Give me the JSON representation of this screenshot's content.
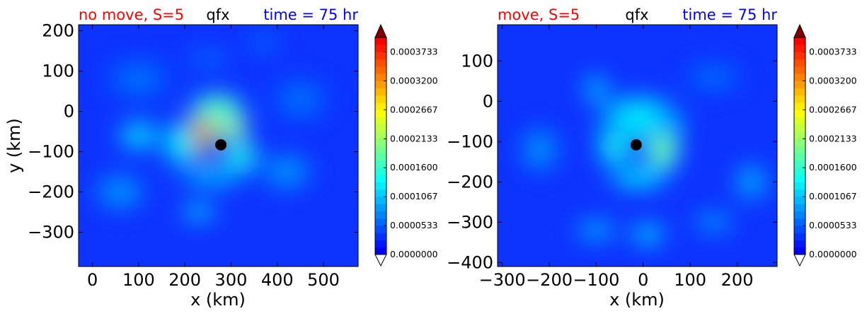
{
  "chart_data": [
    {
      "type": "heatmap",
      "title_left": "no move, S=5",
      "title_center": "qfx",
      "title_right": "time = 75 hr",
      "title_left_color": "#ff0000",
      "title_center_color": "#000000",
      "title_right_color": "#0000ff",
      "xlabel": "x (km)",
      "ylabel": "y (km)",
      "xlim": [
        -30,
        575
      ],
      "ylim": [
        -385,
        215
      ],
      "xticks": [
        0,
        100,
        200,
        300,
        400,
        500
      ],
      "yticks": [
        -300,
        -200,
        -100,
        0,
        100,
        200
      ],
      "center_marker": {
        "x": 278,
        "y": -83,
        "color": "#000000"
      },
      "field_features": [
        {
          "x": 230,
          "y": -60,
          "sx": 38,
          "sy": 55,
          "value": 0.00035,
          "rot": 25
        },
        {
          "x": 300,
          "y": -40,
          "sx": 40,
          "sy": 30,
          "value": 0.00022,
          "rot": 0
        },
        {
          "x": 270,
          "y": 10,
          "sx": 60,
          "sy": 35,
          "value": 0.00017,
          "rot": 0
        },
        {
          "x": 190,
          "y": -80,
          "sx": 40,
          "sy": 60,
          "value": 0.00012,
          "rot": 0
        },
        {
          "x": 320,
          "y": -110,
          "sx": 40,
          "sy": 40,
          "value": 0.00014,
          "rot": 0
        },
        {
          "x": 100,
          "y": -60,
          "sx": 45,
          "sy": 35,
          "value": 0.00012,
          "rot": 0
        },
        {
          "x": 260,
          "y": -160,
          "sx": 80,
          "sy": 30,
          "value": 9e-05,
          "rot": 0
        },
        {
          "x": 230,
          "y": -250,
          "sx": 40,
          "sy": 25,
          "value": 0.0001,
          "rot": 0
        },
        {
          "x": 60,
          "y": -200,
          "sx": 60,
          "sy": 50,
          "value": 7e-05,
          "rot": 0
        },
        {
          "x": 420,
          "y": -150,
          "sx": 60,
          "sy": 50,
          "value": 7e-05,
          "rot": 0
        },
        {
          "x": 250,
          "y": 130,
          "sx": 50,
          "sy": 20,
          "value": 6e-05,
          "rot": 0
        },
        {
          "x": 370,
          "y": 170,
          "sx": 40,
          "sy": 30,
          "value": 5e-05,
          "rot": 0
        },
        {
          "x": 100,
          "y": 80,
          "sx": 80,
          "sy": 60,
          "value": 5e-05,
          "rot": 0
        },
        {
          "x": 450,
          "y": 30,
          "sx": 70,
          "sy": 60,
          "value": 5e-05,
          "rot": 0
        }
      ],
      "colorbar": {
        "vmin": 0.0,
        "vmax": 0.0004,
        "tick_values": [
          0.0,
          5.33e-05,
          0.0001067,
          0.00016,
          0.0002133,
          0.0002667,
          0.00032,
          0.0003733
        ],
        "tick_labels": [
          "0.0000000",
          "0.0000533",
          "0.0001067",
          "0.0001600",
          "0.0002133",
          "0.0002667",
          "0.0003200",
          "0.0003733"
        ],
        "extend": "both",
        "levels": 30
      }
    },
    {
      "type": "heatmap",
      "title_left": "move, S=5",
      "title_center": "qfx",
      "title_right": "time = 75 hr",
      "title_left_color": "#ff0000",
      "title_center_color": "#000000",
      "title_right_color": "#0000ff",
      "xlabel": "x (km)",
      "ylabel": "",
      "xlim": [
        -310,
        285
      ],
      "ylim": [
        -410,
        190
      ],
      "xticks": [
        -300,
        -200,
        -100,
        0,
        100,
        200
      ],
      "yticks": [
        -400,
        -300,
        -200,
        -100,
        0,
        100
      ],
      "center_marker": {
        "x": -15,
        "y": -108,
        "color": "#000000"
      },
      "field_features": [
        {
          "x": 10,
          "y": -60,
          "sx": 80,
          "sy": 40,
          "value": 0.00017,
          "rot": 0
        },
        {
          "x": 40,
          "y": -120,
          "sx": 40,
          "sy": 55,
          "value": 0.00018,
          "rot": 0
        },
        {
          "x": -60,
          "y": -110,
          "sx": 40,
          "sy": 55,
          "value": 0.00013,
          "rot": 0
        },
        {
          "x": -10,
          "y": -190,
          "sx": 70,
          "sy": 30,
          "value": 0.00011,
          "rot": 0
        },
        {
          "x": -10,
          "y": -40,
          "sx": 90,
          "sy": 60,
          "value": 0.00011,
          "rot": 0
        },
        {
          "x": -100,
          "y": 30,
          "sx": 30,
          "sy": 40,
          "value": 9e-05,
          "rot": 0
        },
        {
          "x": -220,
          "y": -120,
          "sx": 45,
          "sy": 60,
          "value": 7e-05,
          "rot": 0
        },
        {
          "x": -100,
          "y": -320,
          "sx": 50,
          "sy": 30,
          "value": 8e-05,
          "rot": 0
        },
        {
          "x": 10,
          "y": -330,
          "sx": 40,
          "sy": 30,
          "value": 0.0001,
          "rot": 0
        },
        {
          "x": 150,
          "y": -300,
          "sx": 50,
          "sy": 30,
          "value": 7e-05,
          "rot": 0
        },
        {
          "x": 230,
          "y": -200,
          "sx": 40,
          "sy": 50,
          "value": 8e-05,
          "rot": 0
        },
        {
          "x": 150,
          "y": 60,
          "sx": 70,
          "sy": 40,
          "value": 5e-05,
          "rot": 0
        }
      ],
      "colorbar": {
        "vmin": 0.0,
        "vmax": 0.0004,
        "tick_values": [
          0.0,
          5.33e-05,
          0.0001067,
          0.00016,
          0.0002133,
          0.0002667,
          0.00032,
          0.0003733
        ],
        "tick_labels": [
          "0.0000000",
          "0.0000533",
          "0.0001067",
          "0.0001600",
          "0.0002133",
          "0.0002667",
          "0.0003200",
          "0.0003733"
        ],
        "extend": "both",
        "levels": 30
      }
    }
  ]
}
